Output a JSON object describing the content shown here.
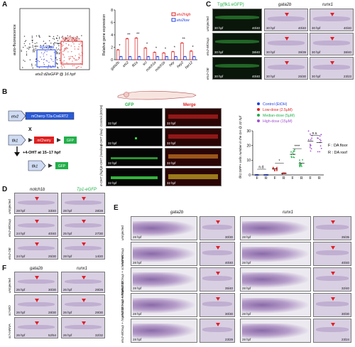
{
  "panels": {
    "A": "A",
    "B": "B",
    "C": "C",
    "D": "D",
    "E": "E",
    "F": "F"
  },
  "scatter": {
    "ylabel": "auto-fluorescence",
    "xlabel": "etv2:d2eGFP @ 16 hpf",
    "low": "etv2low",
    "high": "etv2high"
  },
  "chart_data": [
    {
      "type": "bar",
      "ylabel": "Relative gene expression",
      "ylim": [
        0,
        8
      ],
      "yticks": [
        "0",
        "2",
        "4",
        "6",
        "8"
      ],
      "categories": [
        "gata2b",
        "etv2",
        "fli1a",
        "scl",
        "notch1a",
        "notch1b",
        "hey",
        "hey2",
        "her12"
      ],
      "series": [
        {
          "name": "etv2high",
          "color": "#e02020",
          "values": [
            1.6,
            3.4,
            3.5,
            1.9,
            1.2,
            1.1,
            1.3,
            2.7,
            1.4
          ]
        },
        {
          "name": "etv2low",
          "color": "#2040e0",
          "values": [
            0.5,
            0.5,
            0.5,
            0.5,
            0.5,
            0.5,
            0.5,
            0.5,
            0.5
          ]
        }
      ],
      "significance": [
        "*",
        "**",
        "**",
        "*",
        "*",
        "*",
        "*",
        "**",
        "*"
      ]
    },
    {
      "type": "scatter",
      "ylabel": "flk1:GFP+ cells number in the DA @ 32 hpf",
      "ylim": [
        0,
        30
      ],
      "yticks": [
        "0",
        "10",
        "20",
        "30"
      ],
      "groups": [
        "Control (EtOH)",
        "Low-dose (2.5μM)",
        "Median-dose (5μM)",
        "High-dose (15μM)"
      ],
      "colors": [
        "#2040e0",
        "#e02020",
        "#22b04a",
        "#a050d0"
      ],
      "xticks": [
        "F",
        "R",
        "F",
        "R",
        "F",
        "R",
        "F",
        "R"
      ],
      "means": [
        0,
        0,
        4,
        1,
        14,
        8,
        23,
        22
      ],
      "significance": [
        "n.d.",
        "*",
        "****",
        "n.s."
      ],
      "legend_note": [
        "F : DA floor",
        "R : DA roof"
      ]
    }
  ],
  "panelB": {
    "etv2": "etv2",
    "cassette": "mCherry-T2a-CreERT2",
    "cross": "X",
    "flk1": "flk1",
    "stop": "mCherry",
    "gfp": "GFP",
    "loxp": "loxp",
    "tamox": "+4-OHT at 15–17 hpf",
    "col_gfp": "GFP",
    "col_merge": "Merge",
    "rows": [
      {
        "label": "Control (EtOH)",
        "time": "32 hpf"
      },
      {
        "label": "4-OHT (low)",
        "time": "32 hpf"
      },
      {
        "label": "4-OHT (median)",
        "time": "32 hpf"
      },
      {
        "label": "4-OHT (high)",
        "time": "32 hpf"
      }
    ]
  },
  "panelC": {
    "headers": [
      "Tg(flk1:eGFP)",
      "gata2b",
      "runx1"
    ],
    "rows": [
      {
        "label": "uninjected",
        "cells": [
          [
            "30 hpf",
            "40/40"
          ],
          [
            "30 hpf",
            "40/40"
          ],
          [
            "30 hpf",
            "40/40"
          ]
        ]
      },
      {
        "label": "etv2-MOsup",
        "cells": [
          [
            "30 hpf",
            "38/40"
          ],
          [
            "30 hpf",
            "39/39"
          ],
          [
            "30 hpf",
            "38/40"
          ]
        ]
      },
      {
        "label": "etv2-OE",
        "cells": [
          [
            "30 hpf",
            "40/40"
          ],
          [
            "30 hpf",
            "25/30"
          ],
          [
            "30 hpf",
            "23/23"
          ]
        ]
      }
    ]
  },
  "panelD": {
    "headers": [
      "notch1b",
      "Tp1-eGFP"
    ],
    "rows": [
      {
        "label": "uninjected",
        "cells": [
          [
            "28 hpf",
            "33/40"
          ],
          [
            "28 hpf",
            "28/28"
          ]
        ]
      },
      {
        "label": "etv2-MOsup",
        "cells": [
          [
            "24 hpf",
            "40/40"
          ],
          [
            "25 hpf",
            "27/30"
          ]
        ]
      },
      {
        "label": "etv2-OE",
        "cells": [
          [
            "24 hpf",
            "25/30"
          ],
          [
            "28 hpf",
            "14/20"
          ]
        ]
      }
    ]
  },
  "panelE": {
    "headers": [
      "gata2b",
      "runx1"
    ],
    "rows": [
      {
        "label": "uninjected",
        "time": "28 hpf",
        "c1": "30/30",
        "c2": "35/35"
      },
      {
        "label": "etv2-MOsup",
        "time": "28 hpf",
        "c1": "40/40",
        "c2": "40/40"
      },
      {
        "label": "etv2-MOsup + scl-mRNA",
        "time": "28 hpf",
        "c1": "35/40",
        "c2": "32/40"
      },
      {
        "label": "etv2-MOsup + hsp:NICD",
        "time": "28 hpf",
        "c1": "30/30",
        "c2": "30/30"
      },
      {
        "label": "etv2-MOsup + hsp:NICD + scl-mRNA",
        "time": "28 hpf",
        "c1": "23/29",
        "c2": "23/24"
      }
    ]
  },
  "panelF": {
    "headers": [
      "gata2b",
      "runx1"
    ],
    "rows": [
      {
        "label": "uninjected",
        "cells": [
          [
            "26 hpf",
            "30/30"
          ],
          [
            "26 hpf",
            "29/29"
          ]
        ]
      },
      {
        "label": "scl-MO",
        "cells": [
          [
            "26 hpf",
            "28/30"
          ],
          [
            "26 hpf",
            "29/30"
          ]
        ]
      },
      {
        "label": "scl-mRNA",
        "cells": [
          [
            "26 hpf",
            "52/54"
          ],
          [
            "26 hpf",
            "32/32"
          ]
        ]
      }
    ]
  }
}
